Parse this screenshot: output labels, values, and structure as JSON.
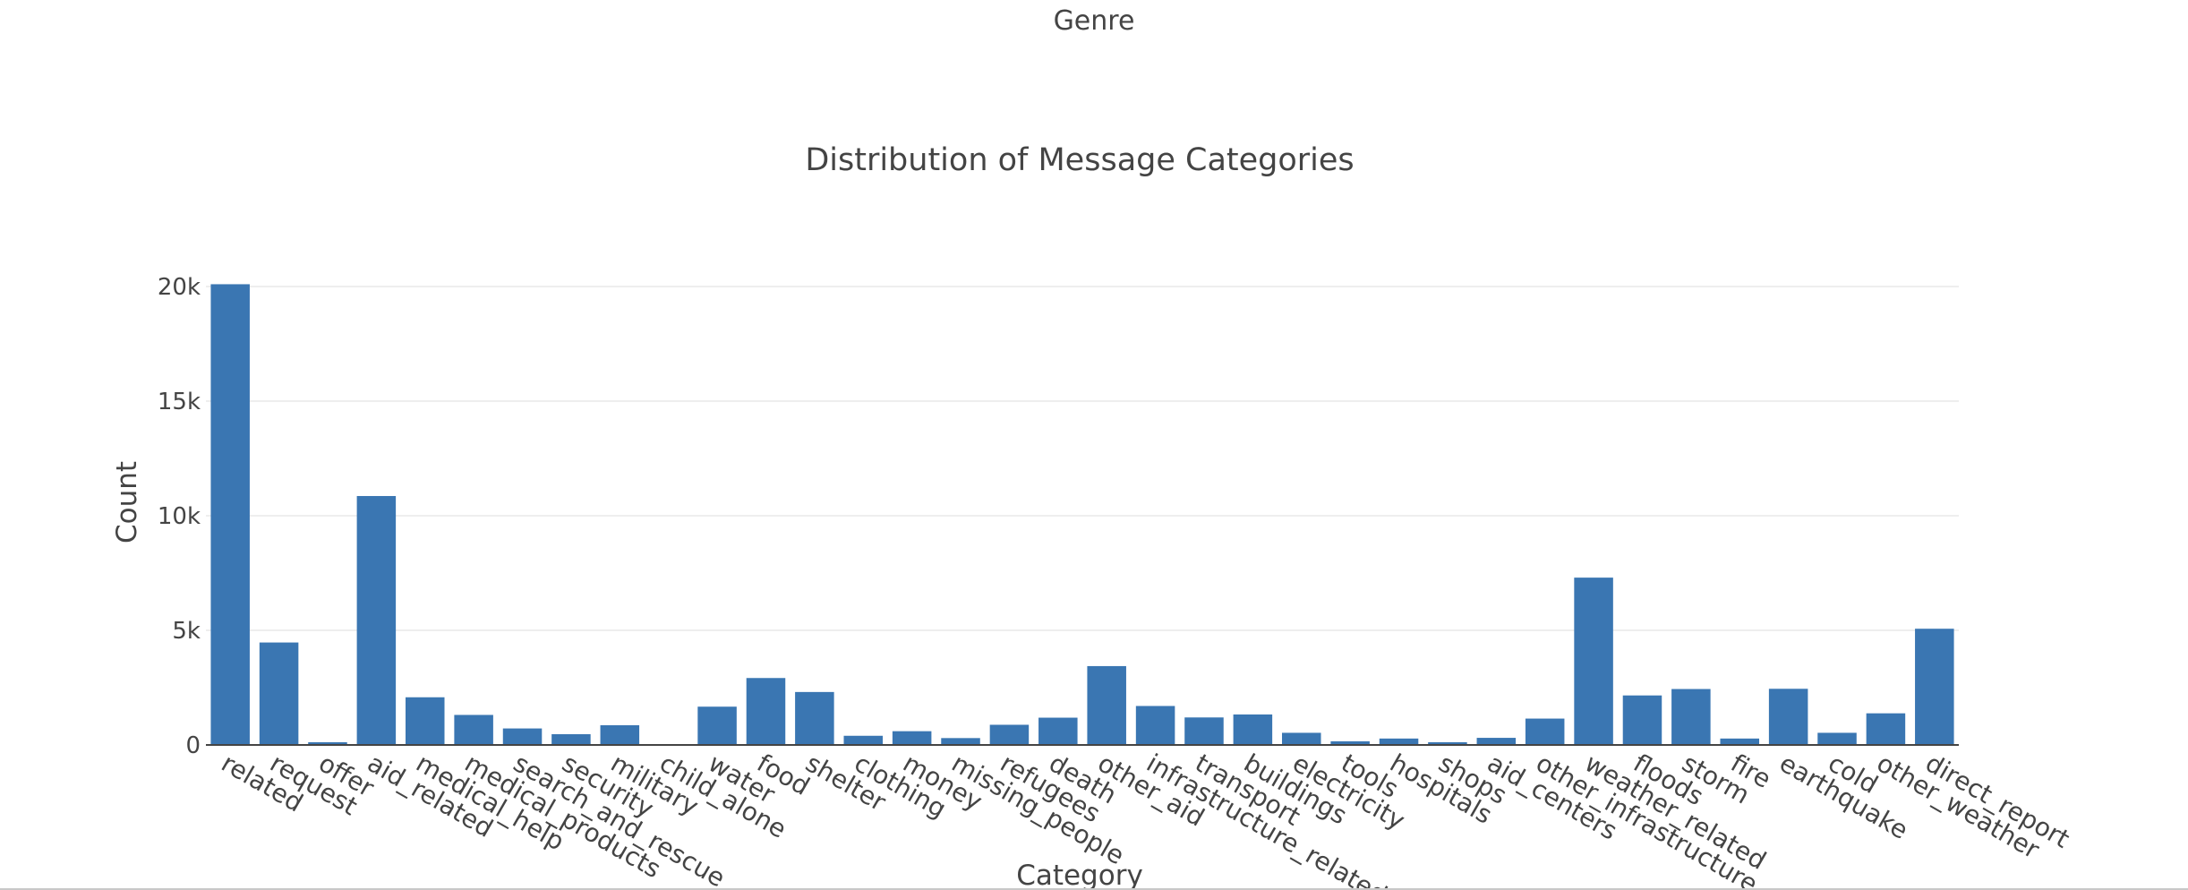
{
  "header": {
    "genre_label": "Genre"
  },
  "chart_data": {
    "type": "bar",
    "title": "Distribution of Message Categories",
    "xlabel": "Category",
    "ylabel": "Count",
    "ylim": [
      0,
      20000
    ],
    "yticks": [
      0,
      5000,
      10000,
      15000,
      20000
    ],
    "ytick_labels": [
      "0",
      "5k",
      "10k",
      "15k",
      "20k"
    ],
    "grid": true,
    "bar_color": "#3a76b2",
    "categories": [
      "related",
      "request",
      "offer",
      "aid_related",
      "medical_help",
      "medical_products",
      "search_and_rescue",
      "security",
      "military",
      "child_alone",
      "water",
      "food",
      "shelter",
      "clothing",
      "money",
      "missing_people",
      "refugees",
      "death",
      "other_aid",
      "infrastructure_related",
      "transport",
      "buildings",
      "electricity",
      "tools",
      "hospitals",
      "shops",
      "aid_centers",
      "other_infrastructure",
      "weather_related",
      "floods",
      "storm",
      "fire",
      "earthquake",
      "cold",
      "other_weather",
      "direct_report"
    ],
    "values": [
      20100,
      4470,
      120,
      10860,
      2080,
      1310,
      720,
      470,
      860,
      0,
      1670,
      2920,
      2310,
      400,
      600,
      300,
      880,
      1190,
      3440,
      1700,
      1200,
      1330,
      530,
      160,
      280,
      120,
      310,
      1150,
      7300,
      2160,
      2440,
      280,
      2450,
      530,
      1380,
      5070
    ]
  }
}
